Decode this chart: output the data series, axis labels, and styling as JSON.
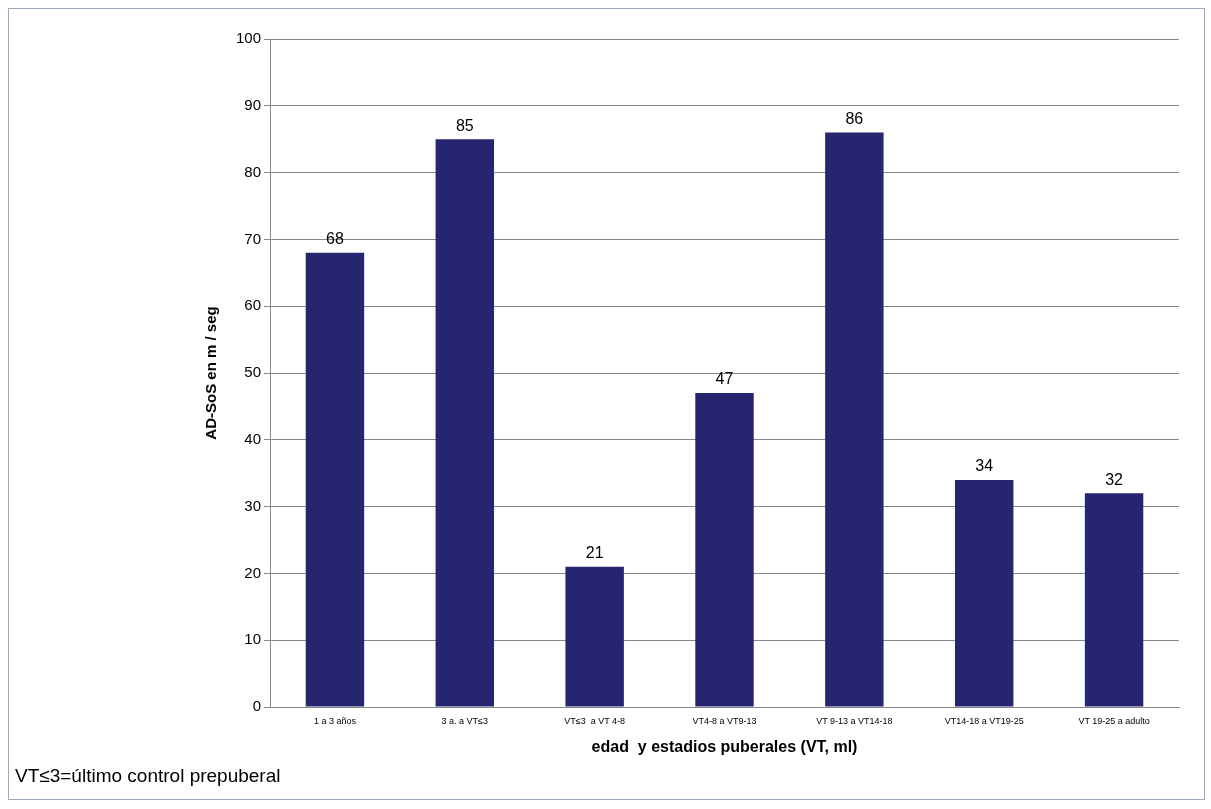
{
  "chart_data": {
    "type": "bar",
    "xlabel": "edad  y estadios puberales (VT, ml)",
    "ylabel": "AD-SoS en m / seg",
    "categories": [
      "1 a 3 años",
      "3 a. a VT≤3",
      "VT≤3  a VT 4-8",
      "VT4-8 a VT9-13",
      "VT 9-13 a VT14-18",
      "VT14-18 a VT19-25",
      "VT 19-25 a adulto"
    ],
    "values": [
      68,
      85,
      21,
      47,
      86,
      34,
      32
    ],
    "color": "#262670",
    "ylim": [
      0,
      100
    ],
    "yticks": [
      0,
      10,
      20,
      30,
      40,
      50,
      60,
      70,
      80,
      90,
      100
    ],
    "grid": "y",
    "data_labels": true,
    "annotations": [
      "VT≤3=último control prepuberal"
    ]
  }
}
